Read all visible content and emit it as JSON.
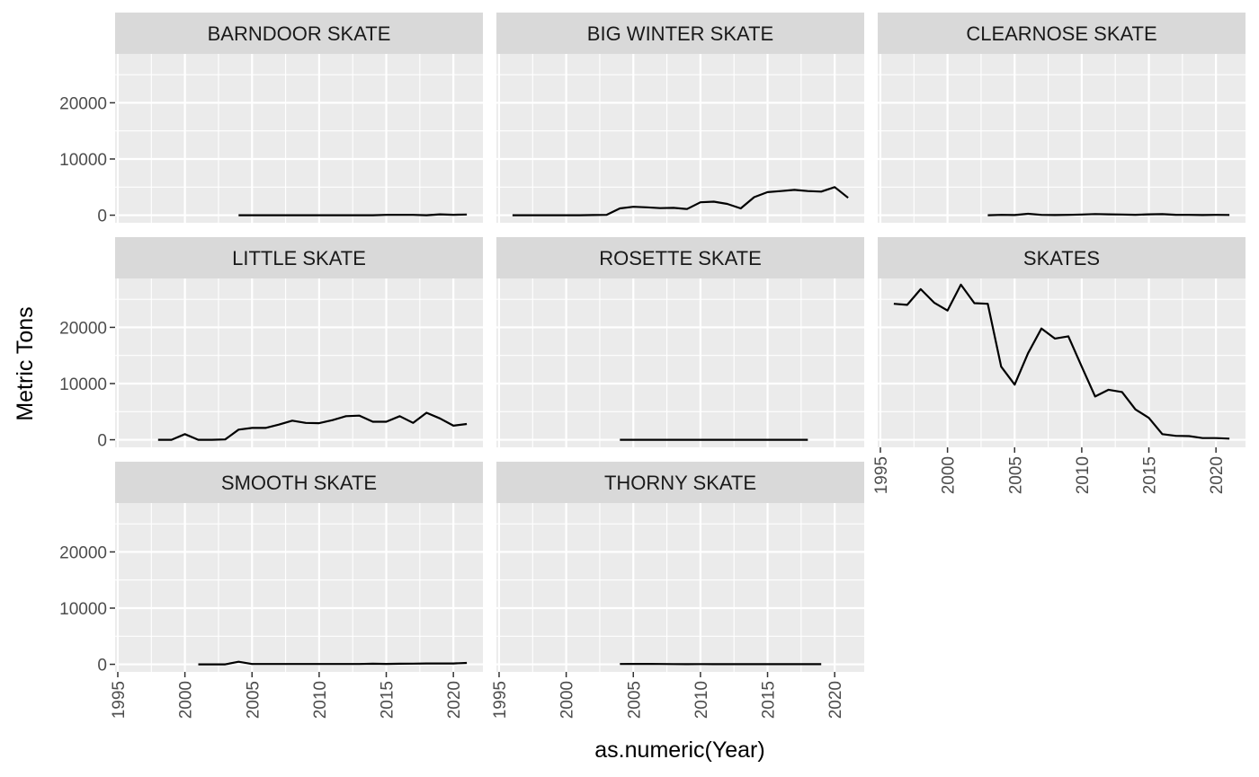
{
  "chart_data": {
    "type": "line",
    "layout": "facet_wrap",
    "xlabel": "as.numeric(Year)",
    "ylabel": "Metric Tons",
    "xlim": [
      1994.8,
      2022.2
    ],
    "ylim": [
      -1350,
      28700
    ],
    "x_ticks": [
      1995,
      2000,
      2005,
      2010,
      2015,
      2020
    ],
    "y_ticks": [
      0,
      10000,
      20000
    ],
    "grid": true,
    "line_color": "#000000",
    "panel_background": "#ebebeb",
    "strip_background": "#d9d9d9",
    "panels": [
      {
        "name": "BARNDOOR SKATE",
        "x": [
          2004,
          2005,
          2006,
          2007,
          2008,
          2009,
          2010,
          2011,
          2012,
          2013,
          2014,
          2015,
          2016,
          2017,
          2018,
          2019,
          2020,
          2021
        ],
        "y": [
          0,
          0,
          0,
          0,
          0,
          0,
          0,
          0,
          0,
          0,
          0,
          50,
          50,
          50,
          0,
          150,
          80,
          120
        ]
      },
      {
        "name": "BIG WINTER SKATE",
        "x": [
          1996,
          1997,
          1998,
          1999,
          2000,
          2001,
          2002,
          2003,
          2004,
          2005,
          2006,
          2007,
          2008,
          2009,
          2010,
          2011,
          2012,
          2013,
          2014,
          2015,
          2016,
          2017,
          2018,
          2019,
          2020,
          2021
        ],
        "y": [
          0,
          0,
          0,
          0,
          0,
          0,
          30,
          50,
          1200,
          1500,
          1400,
          1250,
          1300,
          1100,
          2300,
          2400,
          2000,
          1200,
          3200,
          4100,
          4300,
          4500,
          4300,
          4200,
          5000,
          3100
        ]
      },
      {
        "name": "CLEARNOSE SKATE",
        "x": [
          2003,
          2004,
          2005,
          2006,
          2007,
          2008,
          2009,
          2010,
          2011,
          2012,
          2013,
          2014,
          2015,
          2016,
          2017,
          2018,
          2019,
          2020,
          2021
        ],
        "y": [
          0,
          50,
          20,
          250,
          50,
          30,
          60,
          120,
          200,
          150,
          120,
          80,
          150,
          180,
          80,
          50,
          30,
          60,
          40
        ]
      },
      {
        "name": "LITTLE SKATE",
        "x": [
          1998,
          1999,
          2000,
          2001,
          2002,
          2003,
          2004,
          2005,
          2006,
          2007,
          2008,
          2009,
          2010,
          2011,
          2012,
          2013,
          2014,
          2015,
          2016,
          2017,
          2018,
          2019,
          2020,
          2021
        ],
        "y": [
          0,
          0,
          1000,
          0,
          0,
          50,
          1800,
          2100,
          2100,
          2700,
          3400,
          3000,
          2950,
          3500,
          4200,
          4300,
          3200,
          3200,
          4200,
          3000,
          4800,
          3800,
          2500,
          2800
        ]
      },
      {
        "name": "ROSETTE SKATE",
        "x": [
          2004,
          2006,
          2008,
          2010,
          2012,
          2014,
          2016,
          2018
        ],
        "y": [
          0,
          0,
          0,
          0,
          0,
          0,
          0,
          0
        ]
      },
      {
        "name": "SKATES",
        "x": [
          1996,
          1997,
          1998,
          1999,
          2000,
          2001,
          2002,
          2003,
          2004,
          2005,
          2006,
          2007,
          2008,
          2009,
          2010,
          2011,
          2012,
          2013,
          2014,
          2015,
          2016,
          2017,
          2018,
          2019,
          2020,
          2021
        ],
        "y": [
          24200,
          24000,
          26800,
          24400,
          23000,
          27600,
          24300,
          24200,
          13000,
          9800,
          15400,
          19800,
          18000,
          18400,
          13000,
          7700,
          8900,
          8500,
          5400,
          3900,
          1000,
          700,
          650,
          300,
          300,
          200
        ]
      },
      {
        "name": "SMOOTH SKATE",
        "x": [
          2001,
          2002,
          2003,
          2004,
          2005,
          2006,
          2007,
          2008,
          2009,
          2010,
          2011,
          2012,
          2013,
          2014,
          2015,
          2016,
          2017,
          2018,
          2019,
          2020,
          2021
        ],
        "y": [
          0,
          0,
          0,
          450,
          50,
          50,
          50,
          50,
          50,
          50,
          50,
          50,
          50,
          100,
          80,
          100,
          120,
          150,
          150,
          150,
          250
        ]
      },
      {
        "name": "THORNY SKATE",
        "x": [
          2004,
          2005,
          2006,
          2007,
          2008,
          2009,
          2010,
          2011,
          2012,
          2013,
          2014,
          2015,
          2016,
          2017,
          2018,
          2019
        ],
        "y": [
          50,
          80,
          80,
          60,
          40,
          30,
          40,
          30,
          30,
          30,
          30,
          30,
          30,
          30,
          30,
          30
        ]
      }
    ]
  }
}
